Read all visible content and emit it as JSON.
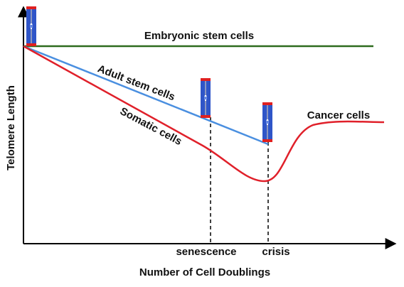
{
  "axes": {
    "x_label": "Number of Cell Doublings",
    "y_label": "Telomere Length"
  },
  "curves": [
    {
      "label": "Embryonic stem cells"
    },
    {
      "label": "Adult stem cells"
    },
    {
      "label": "Somatic cells"
    },
    {
      "label": "Cancer cells"
    }
  ],
  "markers": [
    {
      "label": "senescence"
    },
    {
      "label": "crisis"
    }
  ]
}
